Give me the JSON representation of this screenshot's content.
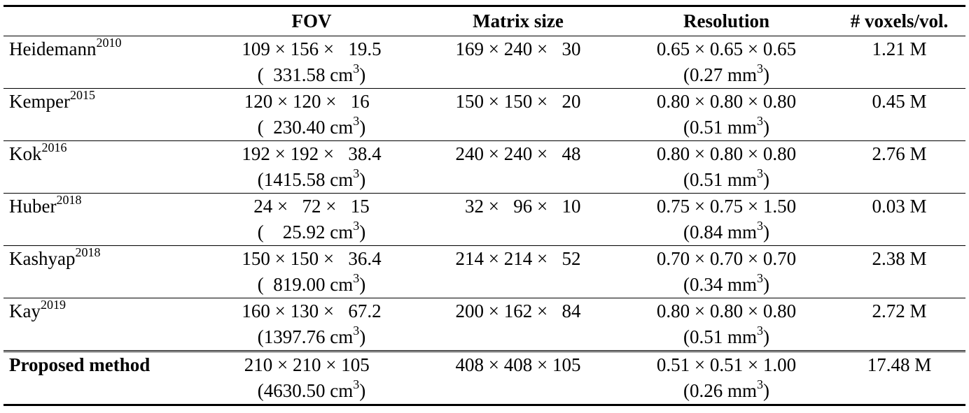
{
  "headers": {
    "method": "",
    "fov": "FOV",
    "matrix": "Matrix size",
    "resolution": "Resolution",
    "voxels": "# voxels/vol."
  },
  "rows": [
    {
      "name": "Heidemann",
      "year": "2010",
      "fov": "109 × 156 ×   19.5",
      "fov_vol": "(  331.58 cm",
      "matrix": "169 × 240 ×   30",
      "res": "0.65 × 0.65 × 0.65",
      "res_vol": "(0.27 mm",
      "voxels": "1.21 M"
    },
    {
      "name": "Kemper",
      "year": "2015",
      "fov": "120 × 120 ×   16  ",
      "fov_vol": "(  230.40 cm",
      "matrix": "150 × 150 ×   20",
      "res": "0.80 × 0.80 × 0.80",
      "res_vol": "(0.51 mm",
      "voxels": "0.45 M"
    },
    {
      "name": "Kok",
      "year": "2016",
      "fov": "192 × 192 ×   38.4",
      "fov_vol": "(1415.58 cm",
      "matrix": "240 × 240 ×   48",
      "res": "0.80 × 0.80 × 0.80",
      "res_vol": "(0.51 mm",
      "voxels": "2.76 M"
    },
    {
      "name": "Huber",
      "year": "2018",
      "fov": "  24 ×   72 ×   15  ",
      "fov_vol": "(    25.92 cm",
      "matrix": "  32 ×   96 ×   10",
      "res": "0.75 × 0.75 × 1.50",
      "res_vol": "(0.84 mm",
      "voxels": "0.03 M"
    },
    {
      "name": "Kashyap",
      "year": "2018",
      "fov": "150 × 150 ×   36.4",
      "fov_vol": "(  819.00 cm",
      "matrix": "214 × 214 ×   52",
      "res": "0.70 × 0.70 × 0.70",
      "res_vol": "(0.34 mm",
      "voxels": "2.38 M"
    },
    {
      "name": "Kay",
      "year": "2019",
      "fov": "160 × 130 ×   67.2",
      "fov_vol": "(1397.76 cm",
      "matrix": "200 × 162 ×   84",
      "res": "0.80 × 0.80 × 0.80",
      "res_vol": "(0.51 mm",
      "voxels": "2.72 M"
    },
    {
      "name": "Proposed method",
      "year": "",
      "fov": "210 × 210 × 105  ",
      "fov_vol": "(4630.50 cm",
      "matrix": "408 × 408 × 105",
      "res": "0.51 × 0.51 × 1.00",
      "res_vol": "(0.26 mm",
      "voxels": "17.48 M"
    }
  ],
  "unit_suffix": {
    "exp": "3",
    "close": ")"
  }
}
